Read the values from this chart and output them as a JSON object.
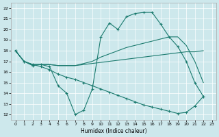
{
  "xlabel": "Humidex (Indice chaleur)",
  "bg_color": "#cde8ec",
  "line_color": "#1a7a6e",
  "grid_color": "#ffffff",
  "xlim": [
    -0.5,
    23.5
  ],
  "ylim": [
    11.5,
    22.5
  ],
  "yticks": [
    12,
    13,
    14,
    15,
    16,
    17,
    18,
    19,
    20,
    21,
    22
  ],
  "xticks": [
    0,
    1,
    2,
    3,
    4,
    5,
    6,
    7,
    8,
    9,
    10,
    11,
    12,
    13,
    14,
    15,
    16,
    17,
    18,
    19,
    20,
    21,
    22,
    23
  ],
  "series": [
    {
      "x": [
        0,
        1,
        2,
        3,
        4,
        5,
        6,
        7,
        8,
        9,
        10,
        11,
        12,
        13,
        14,
        15,
        16,
        17,
        18,
        19,
        20,
        21,
        22
      ],
      "y": [
        18.0,
        17.0,
        16.6,
        16.7,
        16.5,
        14.7,
        14.0,
        12.0,
        12.4,
        14.4,
        19.3,
        20.6,
        20.0,
        21.2,
        21.5,
        21.6,
        21.6,
        20.5,
        19.3,
        18.4,
        17.0,
        15.0,
        13.7
      ],
      "marker": true
    },
    {
      "x": [
        0,
        1,
        2,
        3,
        4,
        5,
        6,
        7,
        8,
        9,
        10,
        11,
        12,
        13,
        14,
        15,
        16,
        17,
        18,
        19,
        20,
        21,
        22
      ],
      "y": [
        18.0,
        17.0,
        16.7,
        16.5,
        16.2,
        15.8,
        15.5,
        15.3,
        15.0,
        14.7,
        14.4,
        14.1,
        13.8,
        13.5,
        13.2,
        12.9,
        12.7,
        12.5,
        12.3,
        12.1,
        12.2,
        12.8,
        13.7
      ],
      "marker": true
    },
    {
      "x": [
        0,
        1,
        2,
        3,
        4,
        5,
        6,
        7,
        8,
        9,
        10,
        11,
        12,
        13,
        14,
        15,
        16,
        17,
        18,
        19,
        20,
        21,
        22
      ],
      "y": [
        18.0,
        17.0,
        16.7,
        16.7,
        16.7,
        16.6,
        16.6,
        16.6,
        16.7,
        16.8,
        16.9,
        17.0,
        17.1,
        17.2,
        17.3,
        17.4,
        17.5,
        17.6,
        17.7,
        17.8,
        17.9,
        17.9,
        18.0
      ],
      "marker": false
    },
    {
      "x": [
        0,
        1,
        2,
        3,
        4,
        5,
        6,
        7,
        8,
        9,
        10,
        11,
        12,
        13,
        14,
        15,
        16,
        17,
        18,
        19,
        20,
        21,
        22
      ],
      "y": [
        18.0,
        17.0,
        16.7,
        16.7,
        16.7,
        16.6,
        16.6,
        16.6,
        16.8,
        17.0,
        17.4,
        17.7,
        18.0,
        18.3,
        18.5,
        18.7,
        18.9,
        19.1,
        19.3,
        19.3,
        18.5,
        17.0,
        15.0
      ],
      "marker": false
    }
  ]
}
